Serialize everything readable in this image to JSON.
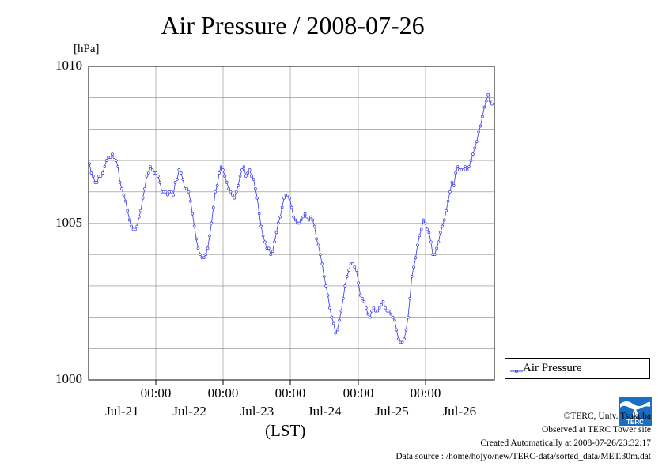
{
  "chart_data": {
    "type": "line",
    "title": "Air Pressure / 2008-07-26",
    "ylabel_unit": "[hPa]",
    "xlabel": "(LST)",
    "ylim": [
      1000,
      1010
    ],
    "yticks": [
      "1000",
      "1005",
      "1010"
    ],
    "x_time_ticks": [
      "00:00",
      "00:00",
      "00:00",
      "00:00",
      "00:00"
    ],
    "x_date_ticks": [
      "Jul-21",
      "Jul-22",
      "Jul-23",
      "Jul-24",
      "Jul-25",
      "Jul-26"
    ],
    "grid": true,
    "legend_position": "right",
    "color": "#3333ee",
    "series": [
      {
        "name": "Air Pressure",
        "values": [
          1006.9,
          1006.6,
          1006.5,
          1006.3,
          1006.3,
          1006.5,
          1006.5,
          1006.6,
          1006.8,
          1007.0,
          1007.1,
          1007.1,
          1007.2,
          1007.1,
          1007.0,
          1006.8,
          1006.3,
          1006.1,
          1005.9,
          1005.7,
          1005.4,
          1005.1,
          1004.9,
          1004.8,
          1004.8,
          1004.9,
          1005.2,
          1005.4,
          1005.8,
          1006.1,
          1006.5,
          1006.6,
          1006.8,
          1006.7,
          1006.6,
          1006.6,
          1006.5,
          1006.3,
          1006.0,
          1006.0,
          1006.0,
          1005.9,
          1006.0,
          1006.0,
          1005.9,
          1006.3,
          1006.4,
          1006.7,
          1006.6,
          1006.4,
          1006.1,
          1006.1,
          1006.0,
          1005.7,
          1005.3,
          1004.9,
          1004.5,
          1004.2,
          1004.0,
          1003.9,
          1003.9,
          1004.0,
          1004.2,
          1004.6,
          1005.0,
          1005.5,
          1006.0,
          1006.2,
          1006.6,
          1006.8,
          1006.7,
          1006.5,
          1006.3,
          1006.1,
          1006.0,
          1005.9,
          1005.8,
          1006.0,
          1006.2,
          1006.5,
          1006.7,
          1006.8,
          1006.5,
          1006.6,
          1006.7,
          1006.5,
          1006.4,
          1006.1,
          1005.8,
          1005.3,
          1004.9,
          1004.6,
          1004.4,
          1004.2,
          1004.2,
          1004.0,
          1004.1,
          1004.4,
          1004.7,
          1005.0,
          1005.2,
          1005.5,
          1005.8,
          1005.9,
          1005.9,
          1005.8,
          1005.5,
          1005.2,
          1005.1,
          1005.0,
          1005.0,
          1005.1,
          1005.2,
          1005.3,
          1005.2,
          1005.1,
          1005.2,
          1005.1,
          1004.9,
          1004.5,
          1004.3,
          1004.0,
          1003.7,
          1003.3,
          1003.0,
          1002.7,
          1002.3,
          1002.0,
          1001.8,
          1001.5,
          1001.6,
          1001.9,
          1002.2,
          1002.6,
          1003.0,
          1003.3,
          1003.5,
          1003.7,
          1003.7,
          1003.6,
          1003.5,
          1003.1,
          1002.7,
          1002.6,
          1002.5,
          1002.3,
          1002.1,
          1002.0,
          1002.2,
          1002.3,
          1002.2,
          1002.2,
          1002.3,
          1002.4,
          1002.5,
          1002.3,
          1002.2,
          1002.2,
          1002.1,
          1002.0,
          1001.9,
          1001.6,
          1001.3,
          1001.2,
          1001.2,
          1001.3,
          1001.6,
          1002.0,
          1002.6,
          1003.3,
          1003.6,
          1003.9,
          1004.3,
          1004.6,
          1004.8,
          1005.1,
          1005.0,
          1004.8,
          1004.7,
          1004.4,
          1004.0,
          1004.0,
          1004.2,
          1004.4,
          1004.7,
          1004.9,
          1005.1,
          1005.4,
          1005.7,
          1006.0,
          1006.3,
          1006.2,
          1006.6,
          1006.8,
          1006.7,
          1006.7,
          1006.7,
          1006.8,
          1006.7,
          1006.8,
          1007.0,
          1007.2,
          1007.4,
          1007.6,
          1007.9,
          1008.1,
          1008.4,
          1008.7,
          1008.9,
          1009.1,
          1008.9,
          1008.8
        ]
      }
    ]
  },
  "legend": {
    "label": "Air Pressure"
  },
  "footer": {
    "credit": "©TERC, Univ. Tsukuba",
    "site": "Observed at TERC Tower site",
    "created": "Created Automatically at 2008-07-26/23:32:17",
    "source": "Data source : /home/hojyo/new/TERC-data/sorted_data/MET.30m.dat"
  },
  "logo": {
    "text": "TERC",
    "color": "#1a6fc4"
  }
}
